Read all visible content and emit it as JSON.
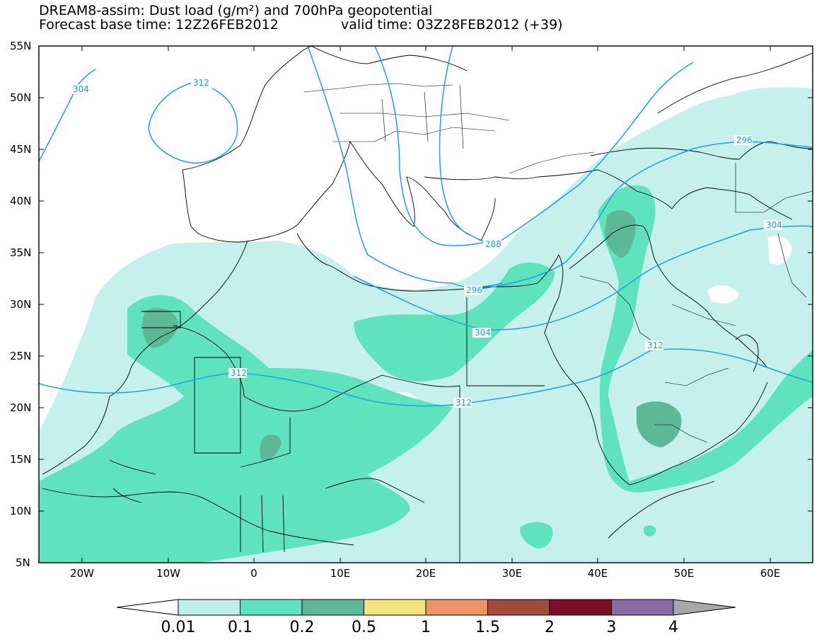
{
  "header": {
    "title_line1": "DREAM8-assim: Dust load (g/m²) and 700hPa geopotential",
    "title_line2a": "Forecast base time: 12Z26FEB2012",
    "title_line2b": "valid time: 03Z28FEB2012 (+39)"
  },
  "axes": {
    "lat_labels": [
      "55N",
      "50N",
      "45N",
      "40N",
      "35N",
      "30N",
      "25N",
      "20N",
      "15N",
      "10N",
      "5N"
    ],
    "lon_labels": [
      "20W",
      "10W",
      "0",
      "10E",
      "20E",
      "30E",
      "40E",
      "50E",
      "60E"
    ]
  },
  "contour_labels": {
    "c304a": "304",
    "c312a": "312",
    "c312b": "312",
    "c312c": "312",
    "c312d": "312",
    "c288": "288",
    "c296a": "296",
    "c296b": "296",
    "c304b": "304",
    "c304c": "304"
  },
  "colorbar": {
    "labels": [
      "0.01",
      "0.1",
      "0.2",
      "0.5",
      "1",
      "1.5",
      "2",
      "3",
      "4"
    ],
    "colors": [
      "#ffffff",
      "#bff0ea",
      "#5ee3bd",
      "#5db897",
      "#f3e47b",
      "#ea9468",
      "#a24b3a",
      "#7d0f2a",
      "#8d6aa1",
      "#a8a8a8"
    ]
  },
  "colors": {
    "dust_low": "#c5f0eb",
    "dust_mid": "#5ee3bd",
    "dust_high": "#5db897",
    "contour": "#1aa0e6"
  }
}
